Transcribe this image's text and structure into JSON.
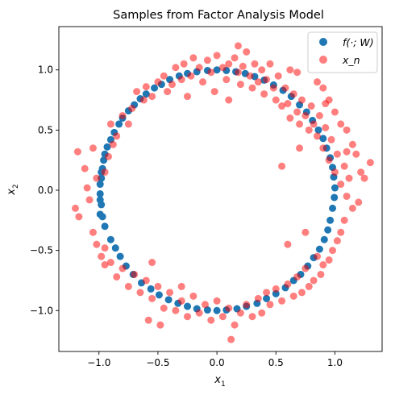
{
  "chart_data": {
    "type": "scatter",
    "title": "Samples from Factor Analysis Model",
    "xlabel": {
      "base": "x",
      "sub": "1"
    },
    "ylabel": {
      "base": "x",
      "sub": "2"
    },
    "xlim": [
      -1.34,
      1.4
    ],
    "ylim": [
      -1.34,
      1.36
    ],
    "xticks": [
      -1.0,
      -0.5,
      0.0,
      0.5,
      1.0
    ],
    "xtick_labels": [
      "−1.0",
      "−0.5",
      "0.0",
      "0.5",
      "1.0"
    ],
    "yticks": [
      -1.0,
      -0.5,
      0.0,
      0.5,
      1.0
    ],
    "ytick_labels": [
      "−1.0",
      "−0.5",
      "0.0",
      "0.5",
      "1.0"
    ],
    "grid": false,
    "legend_position": "top-right",
    "series": [
      {
        "name": "f(·; W)",
        "color": "#1f77b4",
        "alpha": 1.0,
        "points": [
          [
            -0.99,
            0.05
          ],
          [
            -0.99,
            -0.03
          ],
          [
            -0.99,
            -0.08
          ],
          [
            -0.98,
            -0.12
          ],
          [
            -0.99,
            -0.2
          ],
          [
            -0.98,
            0.1
          ],
          [
            -0.98,
            0.15
          ],
          [
            -0.97,
            0.18
          ],
          [
            -0.96,
            0.25
          ],
          [
            -0.95,
            0.3
          ],
          [
            -0.93,
            0.36
          ],
          [
            -0.9,
            0.42
          ],
          [
            -0.87,
            0.48
          ],
          [
            -0.83,
            0.55
          ],
          [
            -0.8,
            0.6
          ],
          [
            -0.75,
            0.66
          ],
          [
            -0.7,
            0.71
          ],
          [
            -0.65,
            0.76
          ],
          [
            -0.6,
            0.8
          ],
          [
            -0.53,
            0.85
          ],
          [
            -0.47,
            0.88
          ],
          [
            -0.4,
            0.92
          ],
          [
            -0.32,
            0.95
          ],
          [
            -0.25,
            0.97
          ],
          [
            -0.17,
            0.985
          ],
          [
            -0.08,
            0.995
          ],
          [
            0.0,
            1.0
          ],
          [
            0.08,
            0.995
          ],
          [
            0.16,
            0.985
          ],
          [
            0.24,
            0.97
          ],
          [
            0.32,
            0.945
          ],
          [
            0.4,
            0.915
          ],
          [
            0.48,
            0.875
          ],
          [
            0.56,
            0.83
          ],
          [
            0.63,
            0.78
          ],
          [
            0.7,
            0.71
          ],
          [
            0.76,
            0.65
          ],
          [
            0.81,
            0.58
          ],
          [
            0.86,
            0.5
          ],
          [
            0.9,
            0.43
          ],
          [
            0.93,
            0.35
          ],
          [
            0.96,
            0.27
          ],
          [
            0.98,
            0.19
          ],
          [
            0.99,
            0.11
          ],
          [
            1.0,
            0.02
          ],
          [
            0.995,
            -0.06
          ],
          [
            0.98,
            -0.15
          ],
          [
            0.96,
            -0.25
          ],
          [
            0.94,
            -0.33
          ],
          [
            0.91,
            -0.41
          ],
          [
            0.87,
            -0.49
          ],
          [
            0.82,
            -0.56
          ],
          [
            0.77,
            -0.63
          ],
          [
            0.71,
            -0.7
          ],
          [
            0.65,
            -0.75
          ],
          [
            0.58,
            -0.81
          ],
          [
            0.5,
            -0.86
          ],
          [
            0.42,
            -0.9
          ],
          [
            0.34,
            -0.94
          ],
          [
            0.25,
            -0.965
          ],
          [
            0.17,
            -0.985
          ],
          [
            0.08,
            -0.995
          ],
          [
            0.0,
            -1.0
          ],
          [
            -0.08,
            -0.995
          ],
          [
            -0.17,
            -0.985
          ],
          [
            -0.25,
            -0.965
          ],
          [
            -0.33,
            -0.94
          ],
          [
            -0.41,
            -0.91
          ],
          [
            -0.49,
            -0.87
          ],
          [
            -0.56,
            -0.82
          ],
          [
            -0.64,
            -0.77
          ],
          [
            -0.71,
            -0.7
          ],
          [
            -0.77,
            -0.63
          ],
          [
            -0.82,
            -0.55
          ],
          [
            -0.86,
            -0.48
          ],
          [
            -0.9,
            -0.41
          ],
          [
            -0.95,
            -0.3
          ],
          [
            -0.97,
            -0.22
          ]
        ]
      },
      {
        "name": "x_n",
        "color": "#ff0000",
        "alpha": 0.5,
        "points": [
          [
            -1.2,
            -0.15
          ],
          [
            -1.17,
            -0.22
          ],
          [
            -1.1,
            0.02
          ],
          [
            -1.08,
            -0.08
          ],
          [
            -1.18,
            0.32
          ],
          [
            -1.12,
            0.18
          ],
          [
            -1.05,
            0.35
          ],
          [
            -1.02,
            0.1
          ],
          [
            -0.95,
            0.15
          ],
          [
            -0.92,
            0.28
          ],
          [
            -0.88,
            0.38
          ],
          [
            -0.9,
            0.55
          ],
          [
            -0.85,
            0.45
          ],
          [
            -0.8,
            0.62
          ],
          [
            -0.75,
            0.55
          ],
          [
            -0.72,
            0.68
          ],
          [
            -0.68,
            0.82
          ],
          [
            -0.62,
            0.75
          ],
          [
            -0.6,
            0.86
          ],
          [
            -0.55,
            0.78
          ],
          [
            -0.5,
            0.9
          ],
          [
            -0.45,
            0.95
          ],
          [
            -0.42,
            0.82
          ],
          [
            -0.38,
            0.88
          ],
          [
            -0.35,
            1.02
          ],
          [
            -0.3,
            0.92
          ],
          [
            -0.28,
            1.05
          ],
          [
            -0.22,
            0.95
          ],
          [
            -0.2,
            1.1
          ],
          [
            -0.15,
            1.02
          ],
          [
            -0.12,
            0.9
          ],
          [
            -0.08,
            1.08
          ],
          [
            -0.05,
            0.98
          ],
          [
            0.0,
            1.12
          ],
          [
            0.05,
            1.02
          ],
          [
            0.08,
            0.92
          ],
          [
            0.1,
            1.05
          ],
          [
            0.15,
            1.1
          ],
          [
            0.18,
            0.98
          ],
          [
            0.2,
            0.88
          ],
          [
            0.22,
            1.03
          ],
          [
            0.25,
            1.15
          ],
          [
            0.28,
            0.95
          ],
          [
            0.3,
            0.85
          ],
          [
            0.32,
            1.05
          ],
          [
            0.35,
            0.9
          ],
          [
            0.38,
            1.0
          ],
          [
            0.4,
            0.8
          ],
          [
            0.42,
            0.92
          ],
          [
            0.45,
            1.05
          ],
          [
            0.48,
            0.85
          ],
          [
            0.5,
            0.75
          ],
          [
            0.52,
            0.95
          ],
          [
            0.55,
            0.7
          ],
          [
            0.58,
            0.85
          ],
          [
            0.6,
            0.72
          ],
          [
            0.62,
            0.6
          ],
          [
            0.65,
            0.8
          ],
          [
            0.68,
            0.65
          ],
          [
            0.7,
            0.55
          ],
          [
            0.72,
            0.75
          ],
          [
            0.75,
            0.62
          ],
          [
            0.78,
            0.5
          ],
          [
            0.8,
            0.7
          ],
          [
            0.82,
            0.55
          ],
          [
            0.85,
            0.45
          ],
          [
            0.87,
            0.62
          ],
          [
            0.9,
            0.35
          ],
          [
            0.92,
            0.52
          ],
          [
            0.95,
            0.25
          ],
          [
            0.97,
            0.42
          ],
          [
            1.0,
            0.15
          ],
          [
            1.02,
            0.3
          ],
          [
            1.05,
            0.05
          ],
          [
            1.08,
            0.2
          ],
          [
            1.1,
            -0.05
          ],
          [
            1.12,
            0.1
          ],
          [
            1.15,
            -0.15
          ],
          [
            1.08,
            -0.25
          ],
          [
            1.05,
            -0.35
          ],
          [
            1.02,
            -0.42
          ],
          [
            0.98,
            -0.5
          ],
          [
            0.95,
            -0.58
          ],
          [
            0.9,
            -0.62
          ],
          [
            0.88,
            -0.7
          ],
          [
            0.85,
            -0.55
          ],
          [
            0.82,
            -0.75
          ],
          [
            0.78,
            -0.8
          ],
          [
            0.75,
            -0.65
          ],
          [
            0.72,
            -0.85
          ],
          [
            0.68,
            -0.72
          ],
          [
            0.65,
            -0.88
          ],
          [
            0.6,
            -0.78
          ],
          [
            0.55,
            -0.92
          ],
          [
            0.5,
            -0.82
          ],
          [
            0.45,
            -0.95
          ],
          [
            0.42,
            -0.85
          ],
          [
            0.38,
            -1.02
          ],
          [
            0.35,
            -0.9
          ],
          [
            0.3,
            -1.05
          ],
          [
            0.25,
            -0.95
          ],
          [
            0.2,
            -1.02
          ],
          [
            0.15,
            -1.12
          ],
          [
            0.1,
            -0.98
          ],
          [
            0.05,
            -1.05
          ],
          [
            0.0,
            -0.92
          ],
          [
            -0.05,
            -1.08
          ],
          [
            -0.1,
            -0.95
          ],
          [
            -0.15,
            -1.02
          ],
          [
            -0.2,
            -0.88
          ],
          [
            -0.25,
            -1.05
          ],
          [
            -0.3,
            -0.92
          ],
          [
            -0.35,
            -1.0
          ],
          [
            -0.4,
            -0.85
          ],
          [
            -0.45,
            -0.98
          ],
          [
            -0.5,
            -0.8
          ],
          [
            -0.55,
            -0.9
          ],
          [
            -0.6,
            -0.75
          ],
          [
            -0.65,
            -0.85
          ],
          [
            -0.7,
            -0.7
          ],
          [
            -0.75,
            -0.8
          ],
          [
            -0.8,
            -0.65
          ],
          [
            -0.85,
            -0.72
          ],
          [
            -0.9,
            -0.6
          ],
          [
            -0.95,
            -0.62
          ],
          [
            -0.98,
            -0.55
          ],
          [
            -1.02,
            -0.45
          ],
          [
            -0.95,
            -0.48
          ],
          [
            -1.05,
            -0.35
          ],
          [
            1.3,
            0.23
          ],
          [
            1.25,
            0.1
          ],
          [
            1.2,
            -0.1
          ],
          [
            1.22,
            0.15
          ],
          [
            1.18,
            0.3
          ],
          [
            1.15,
            0.38
          ],
          [
            1.1,
            0.5
          ],
          [
            1.05,
            0.55
          ],
          [
            1.0,
            0.65
          ],
          [
            0.95,
            0.75
          ],
          [
            0.9,
            0.85
          ],
          [
            0.85,
            0.9
          ],
          [
            0.92,
            0.72
          ],
          [
            1.1,
            0.32
          ],
          [
            0.12,
            -1.24
          ],
          [
            -0.58,
            -1.08
          ],
          [
            -0.48,
            -1.12
          ],
          [
            0.68,
            0.98
          ],
          [
            0.62,
            1.0
          ],
          [
            0.18,
            1.2
          ],
          [
            -0.02,
            0.82
          ],
          [
            0.1,
            0.75
          ],
          [
            -0.25,
            0.78
          ],
          [
            0.55,
            0.2
          ],
          [
            0.7,
            0.35
          ],
          [
            0.6,
            -0.45
          ],
          [
            0.75,
            -0.35
          ],
          [
            -0.3,
            -0.8
          ],
          [
            -0.55,
            -0.6
          ]
        ]
      }
    ]
  }
}
